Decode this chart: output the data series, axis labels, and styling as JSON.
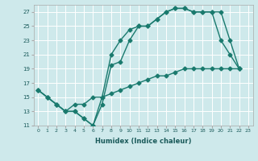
{
  "xlabel": "Humidex (Indice chaleur)",
  "bg_color": "#cee9eb",
  "grid_color": "#ffffff",
  "line_color": "#1a7a6e",
  "xlim": [
    -0.5,
    23.5
  ],
  "ylim": [
    11,
    28
  ],
  "xticks": [
    0,
    1,
    2,
    3,
    4,
    5,
    6,
    7,
    8,
    9,
    10,
    11,
    12,
    13,
    14,
    15,
    16,
    17,
    18,
    19,
    20,
    21,
    22,
    23
  ],
  "yticks": [
    11,
    13,
    15,
    17,
    19,
    21,
    23,
    25,
    27
  ],
  "line1_x": [
    0,
    1,
    2,
    3,
    4,
    5,
    6,
    7,
    8,
    9,
    10,
    11,
    12,
    13,
    14,
    15,
    16,
    17,
    18,
    19,
    20,
    21,
    22
  ],
  "line1_y": [
    16,
    15,
    14,
    13,
    13,
    12,
    11,
    15,
    21,
    23,
    24.5,
    25,
    25,
    26,
    27,
    27.5,
    27.5,
    27,
    27,
    27,
    23,
    21,
    19
  ],
  "line2_x": [
    0,
    1,
    2,
    3,
    4,
    5,
    6,
    7,
    8,
    9,
    10,
    11,
    12,
    13,
    14,
    15,
    16,
    17,
    18,
    19,
    20,
    21,
    22
  ],
  "line2_y": [
    16,
    15,
    14,
    13,
    13,
    12,
    11,
    14,
    19.5,
    20,
    23,
    25,
    25,
    26,
    27,
    27.5,
    27.5,
    27,
    27,
    27,
    27,
    23,
    19
  ],
  "line3_x": [
    0,
    1,
    2,
    3,
    4,
    5,
    6,
    7,
    8,
    9,
    10,
    11,
    12,
    13,
    14,
    15,
    16,
    17,
    18,
    19,
    20,
    21,
    22
  ],
  "line3_y": [
    16,
    15,
    14,
    13,
    14,
    14,
    15,
    15,
    15.5,
    16,
    16.5,
    17,
    17.5,
    18,
    18,
    18.5,
    19,
    19,
    19,
    19,
    19,
    19,
    19
  ]
}
